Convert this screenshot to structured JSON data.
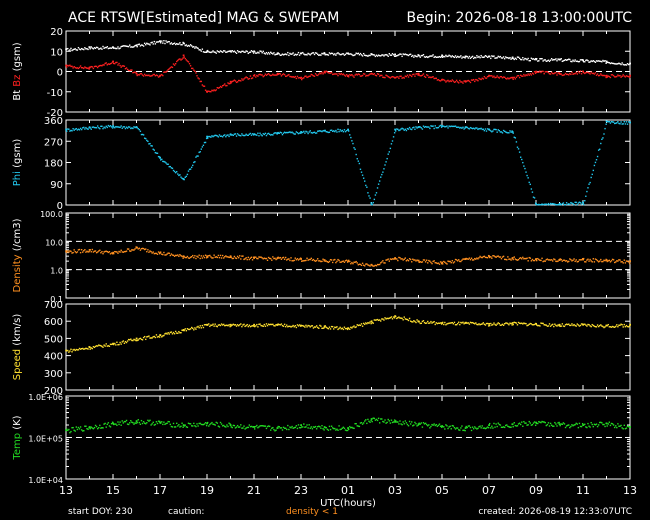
{
  "header": {
    "title": "ACE RTSW[Estimated] MAG & SWEPAM",
    "begin": "Begin: 2026-08-18 13:00:00UTC"
  },
  "footer": {
    "start_doy": "start DOY: 230",
    "caution_label": "caution:",
    "caution_value": "density < 1",
    "created": "created: 2026-08-19 12:33:07UTC"
  },
  "colors": {
    "bt": "#ffffff",
    "bz": "#ff2020",
    "phi": "#22c8ee",
    "density": "#ff9020",
    "speed": "#ffe030",
    "temp": "#22dd22",
    "axis": "#ffffff",
    "background": "#000000"
  },
  "chart_data": {
    "type": "scatter",
    "x_axis": {
      "label": "UTC(hours)",
      "tick_labels": [
        "13",
        "15",
        "17",
        "19",
        "21",
        "23",
        "01",
        "03",
        "05",
        "07",
        "09",
        "11",
        "13"
      ]
    },
    "panels": [
      {
        "id": "mag",
        "ylabel_parts": [
          "Bt",
          "Bz",
          "(gsm)"
        ],
        "ylim": [
          -20,
          20
        ],
        "scale": "linear",
        "ticks": [
          20,
          10,
          0,
          -10,
          -20
        ],
        "tick_labels": [
          "20",
          "10",
          "0",
          "-10",
          "-20"
        ],
        "ref_lines": [
          0
        ],
        "series": [
          {
            "name": "Bt",
            "color": "#ffffff",
            "x": [
              0,
              1,
              2,
              3,
              4,
              5,
              6,
              7,
              8,
              9,
              10,
              11,
              12,
              13,
              14,
              15,
              16,
              17,
              18,
              19,
              20,
              21,
              22,
              23,
              24
            ],
            "y": [
              11,
              12,
              12,
              13,
              15,
              14,
              10,
              10,
              10,
              9,
              9,
              9,
              9,
              8.5,
              8.5,
              8,
              8,
              7.5,
              7.5,
              7,
              6,
              6,
              5.5,
              5,
              4
            ]
          },
          {
            "name": "Bz",
            "color": "#ff2020",
            "x": [
              0,
              1,
              2,
              3,
              4,
              5,
              6,
              7,
              8,
              9,
              10,
              11,
              12,
              13,
              14,
              15,
              16,
              17,
              18,
              19,
              20,
              21,
              22,
              23,
              24
            ],
            "y": [
              3,
              2,
              5,
              -1,
              -2,
              8,
              -10,
              -5,
              -2,
              -1,
              -3,
              0,
              -2,
              -1,
              -3,
              -1,
              -4,
              -5,
              -2,
              -3,
              0,
              -1,
              0,
              -2,
              -2
            ]
          }
        ]
      },
      {
        "id": "phi",
        "ylabel_parts": [
          "Phi",
          "(gsm)"
        ],
        "ylim": [
          0,
          360
        ],
        "scale": "linear",
        "ticks": [
          360,
          270,
          180,
          90,
          0
        ],
        "tick_labels": [
          "360",
          "270",
          "180",
          "90",
          "0"
        ],
        "ref_lines": [],
        "series": [
          {
            "name": "Phi",
            "color": "#22c8ee",
            "x": [
              0,
              1,
              2,
              3,
              4,
              5,
              6,
              7,
              8,
              9,
              10,
              11,
              12,
              13,
              14,
              15,
              16,
              17,
              18,
              19,
              20,
              21,
              22,
              23,
              24
            ],
            "y": [
              320,
              330,
              335,
              330,
              200,
              110,
              290,
              300,
              300,
              305,
              310,
              315,
              320,
              0,
              320,
              330,
              335,
              330,
              320,
              310,
              0,
              5,
              10,
              355,
              350
            ]
          }
        ]
      },
      {
        "id": "density",
        "ylabel_parts": [
          "Density",
          "(/cm3)"
        ],
        "ylim": [
          0.1,
          100
        ],
        "scale": "log",
        "ticks": [
          100,
          10,
          1,
          0.1
        ],
        "tick_labels": [
          "100.0",
          "10.0",
          "1.0",
          "0.1"
        ],
        "ref_lines": [
          10,
          1
        ],
        "series": [
          {
            "name": "Density",
            "color": "#ff9020",
            "x": [
              0,
              1,
              2,
              3,
              4,
              5,
              6,
              7,
              8,
              9,
              10,
              11,
              12,
              13,
              14,
              15,
              16,
              17,
              18,
              19,
              20,
              21,
              22,
              23,
              24
            ],
            "y": [
              4.5,
              5,
              4,
              6,
              4,
              3,
              3,
              3,
              2.6,
              2.6,
              2.4,
              2.2,
              2,
              1.5,
              2.6,
              2.1,
              1.8,
              2.4,
              3,
              2.6,
              2.4,
              2.2,
              2.3,
              2.2,
              2
            ]
          }
        ]
      },
      {
        "id": "speed",
        "ylabel_parts": [
          "Speed",
          "(km/s)"
        ],
        "ylim": [
          200,
          700
        ],
        "scale": "linear",
        "ticks": [
          700,
          600,
          500,
          400,
          300,
          200
        ],
        "tick_labels": [
          "700",
          "600",
          "500",
          "400",
          "300",
          "200"
        ],
        "ref_lines": [],
        "series": [
          {
            "name": "Speed",
            "color": "#ffe030",
            "x": [
              0,
              1,
              2,
              3,
              4,
              5,
              6,
              7,
              8,
              9,
              10,
              11,
              12,
              13,
              14,
              15,
              16,
              17,
              18,
              19,
              20,
              21,
              22,
              23,
              24
            ],
            "y": [
              430,
              450,
              470,
              500,
              520,
              550,
              580,
              580,
              580,
              580,
              575,
              570,
              560,
              600,
              630,
              600,
              590,
              590,
              585,
              590,
              585,
              580,
              580,
              575,
              580
            ]
          }
        ]
      },
      {
        "id": "temp",
        "ylabel_parts": [
          "Temp",
          "(K)"
        ],
        "ylim": [
          10000,
          1000000
        ],
        "scale": "log",
        "ticks": [
          1000000,
          100000,
          10000
        ],
        "tick_labels": [
          "1.0E+06",
          "1.0E+05",
          "1.0E+04"
        ],
        "ref_lines": [
          100000
        ],
        "series": [
          {
            "name": "Temp",
            "color": "#22dd22",
            "x": [
              0,
              1,
              2,
              3,
              4,
              5,
              6,
              7,
              8,
              9,
              10,
              11,
              12,
              13,
              14,
              15,
              16,
              17,
              18,
              19,
              20,
              21,
              22,
              23,
              24
            ],
            "y": [
              150000,
              180000,
              220000,
              250000,
              230000,
              200000,
              220000,
              200000,
              180000,
              170000,
              200000,
              180000,
              170000,
              280000,
              240000,
              210000,
              190000,
              170000,
              200000,
              210000,
              230000,
              210000,
              200000,
              220000,
              180000
            ]
          }
        ]
      }
    ]
  }
}
